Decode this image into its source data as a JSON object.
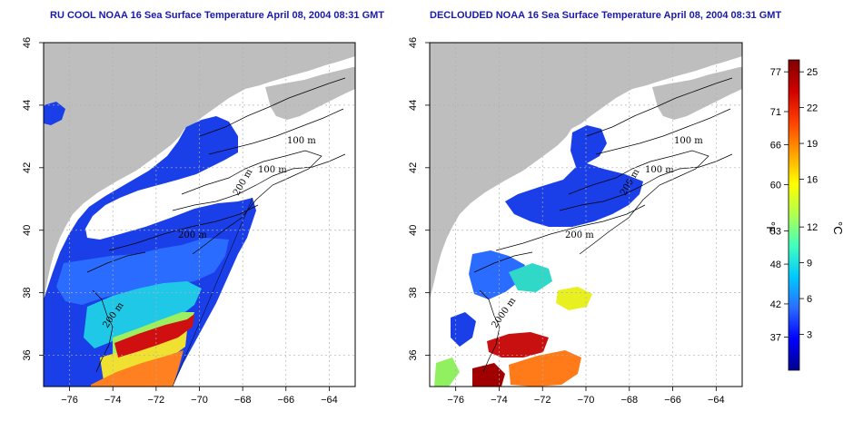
{
  "panels": [
    {
      "id": "left",
      "title": "RU COOL NOAA 16 Sea Surface Temperature April 08, 2004 08:31 GMT",
      "contour_labels": [
        "100 m",
        "100 m",
        "200 m",
        "200 m",
        "200 m"
      ]
    },
    {
      "id": "right",
      "title": "DECLOUDED NOAA 16 Sea Surface Temperature April 08, 2004 08:31 GMT",
      "contour_labels": [
        "100 m",
        "100 m",
        "200 m",
        "200 m",
        "2000 m"
      ]
    }
  ],
  "axes": {
    "lon_ticks": [
      -76,
      -74,
      -72,
      -70,
      -68,
      -66,
      -64
    ],
    "lat_ticks": [
      36,
      38,
      40,
      42,
      44,
      46
    ],
    "lon_range": [
      -77.2,
      -62.8
    ],
    "lat_range": [
      35.0,
      46.0
    ],
    "grid": "dotted"
  },
  "colorbar": {
    "celsius_ticks": [
      3,
      6,
      9,
      12,
      16,
      19,
      22,
      25
    ],
    "fahrenheit_ticks": [
      37,
      42,
      48,
      53,
      60,
      66,
      71,
      77
    ],
    "range_c": [
      0,
      26
    ],
    "fahrenheit_label": "°F",
    "celsius_label": "°C",
    "colors": [
      "#00008f",
      "#0000ff",
      "#2a6cff",
      "#00c8ff",
      "#40ffc0",
      "#b0ff50",
      "#ffff00",
      "#ffa000",
      "#ff4000",
      "#d00000",
      "#800000"
    ]
  },
  "map_colors": {
    "land": "#bebebe",
    "ocean_nodata": "#ffffff"
  }
}
